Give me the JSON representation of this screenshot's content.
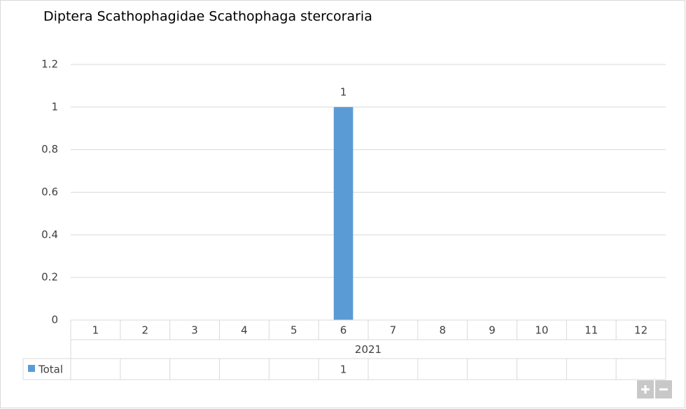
{
  "chart_data": {
    "type": "bar",
    "title": "Diptera Scathophagidae Scathophaga stercoraria",
    "categories": [
      "1",
      "2",
      "3",
      "4",
      "5",
      "6",
      "7",
      "8",
      "9",
      "10",
      "11",
      "12"
    ],
    "category_group": "2021",
    "series": [
      {
        "name": "Total",
        "color": "#5b9bd5",
        "values": [
          null,
          null,
          null,
          null,
          null,
          1,
          null,
          null,
          null,
          null,
          null,
          null
        ]
      }
    ],
    "ylim": [
      0,
      1.2
    ],
    "yticks": [
      0,
      0.2,
      0.4,
      0.6,
      0.8,
      1,
      1.2
    ],
    "grid": true,
    "data_labels": true,
    "data_table": true
  }
}
